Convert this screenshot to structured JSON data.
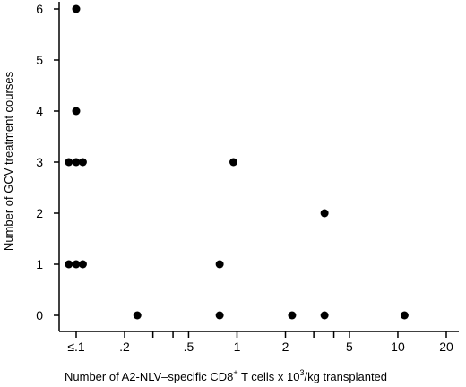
{
  "chart_data": {
    "type": "scatter",
    "ylabel": "Number of GCV treatment courses",
    "xlabel_parts": {
      "prefix": "Number of  A2-NLV–specific CD8",
      "sup1": "+",
      "middle": " T cells x 10",
      "sup2": "3",
      "suffix": "/kg transplanted"
    },
    "x_scale": "log",
    "xlim": [
      0.07,
      20
    ],
    "ylim": [
      0,
      6
    ],
    "x_ticks": [
      {
        "value": 0.1,
        "label": "≤.1"
      },
      {
        "value": 0.2,
        "label": ".2"
      },
      {
        "value": 0.5,
        "label": ".5"
      },
      {
        "value": 1,
        "label": "1"
      },
      {
        "value": 2,
        "label": "2"
      },
      {
        "value": 5,
        "label": "5"
      },
      {
        "value": 10,
        "label": "10"
      },
      {
        "value": 20,
        "label": "20"
      }
    ],
    "x_minor_ticks": [
      0.3,
      0.4,
      3,
      4
    ],
    "y_ticks": [
      0,
      1,
      2,
      3,
      4,
      5,
      6
    ],
    "points": [
      {
        "x": 0.1,
        "y": 6
      },
      {
        "x": 0.1,
        "y": 4
      },
      {
        "x": 0.09,
        "y": 3
      },
      {
        "x": 0.1,
        "y": 3
      },
      {
        "x": 0.11,
        "y": 3
      },
      {
        "x": 0.09,
        "y": 1
      },
      {
        "x": 0.1,
        "y": 1
      },
      {
        "x": 0.11,
        "y": 1
      },
      {
        "x": 0.24,
        "y": 0
      },
      {
        "x": 0.78,
        "y": 1
      },
      {
        "x": 0.78,
        "y": 0
      },
      {
        "x": 0.95,
        "y": 3
      },
      {
        "x": 2.2,
        "y": 0
      },
      {
        "x": 3.5,
        "y": 2
      },
      {
        "x": 3.5,
        "y": 0
      },
      {
        "x": 11,
        "y": 0
      }
    ]
  }
}
